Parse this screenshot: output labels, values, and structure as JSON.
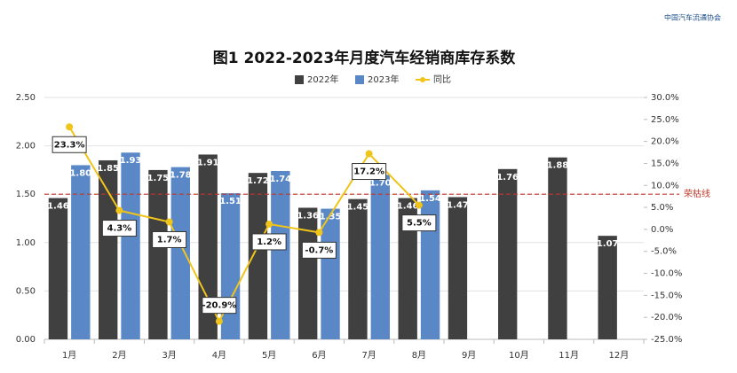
{
  "logo": "中国汽车流通协会",
  "chart_data": {
    "type": "bar_line",
    "title": "图1  2022-2023年月度汽车经销商库存系数",
    "categories": [
      "1月",
      "2月",
      "3月",
      "4月",
      "5月",
      "6月",
      "7月",
      "8月",
      "9月",
      "10月",
      "11月",
      "12月"
    ],
    "series": [
      {
        "name": "2022年",
        "color": "#404040",
        "values": [
          1.46,
          1.85,
          1.75,
          1.91,
          1.72,
          1.36,
          1.45,
          1.46,
          1.47,
          1.76,
          1.88,
          1.07
        ],
        "value_labels": [
          "1.46",
          "1.85",
          "1.75",
          "1.91",
          "1.72",
          "1.36",
          "1.45",
          "1.46",
          "1.47",
          "1.76",
          "1.88",
          "1.07"
        ]
      },
      {
        "name": "2023年",
        "color": "#5a88c6",
        "values": [
          1.8,
          1.93,
          1.78,
          1.51,
          1.74,
          1.35,
          1.7,
          1.54,
          null,
          null,
          null,
          null
        ],
        "value_labels": [
          "1.80",
          "1.93",
          "1.78",
          "1.51",
          "1.74",
          "1.35",
          "1.70",
          "1.54",
          null,
          null,
          null,
          null
        ]
      },
      {
        "name": "同比",
        "color": "#f0c419",
        "axis": "y2",
        "type": "line",
        "values": [
          23.3,
          4.3,
          1.7,
          -20.9,
          1.2,
          -0.7,
          17.2,
          5.5,
          null,
          null,
          null,
          null
        ],
        "value_labels": [
          "23.3%",
          "4.3%",
          "1.7%",
          "-20.9%",
          "1.2%",
          "-0.7%",
          "17.2%",
          "5.5%",
          null,
          null,
          null,
          null
        ]
      }
    ],
    "ylim": [
      0,
      2.5
    ],
    "yticks": [
      {
        "value": 0,
        "label": "0.00"
      },
      {
        "value": 0.5,
        "label": "0.50"
      },
      {
        "value": 1,
        "label": "1.00"
      },
      {
        "value": 1.5,
        "label": "1.50"
      },
      {
        "value": 2,
        "label": "2.00"
      },
      {
        "value": 2.5,
        "label": "2.50"
      }
    ],
    "y2lim": [
      -25,
      30
    ],
    "y2ticks": [
      {
        "value": -25,
        "label": "-25.0%"
      },
      {
        "value": -20,
        "label": "-20.0%"
      },
      {
        "value": -15,
        "label": "-15.0%"
      },
      {
        "value": -10,
        "label": "-10.0%"
      },
      {
        "value": -5,
        "label": "-5.0%"
      },
      {
        "value": 0,
        "label": "0.0%"
      },
      {
        "value": 5,
        "label": "5.0%"
      },
      {
        "value": 10,
        "label": "10.0%"
      },
      {
        "value": 15,
        "label": "15.0%"
      },
      {
        "value": 20,
        "label": "20.0%"
      },
      {
        "value": 25,
        "label": "25.0%"
      },
      {
        "value": 30,
        "label": "30.0%"
      }
    ],
    "reference_line": {
      "value": 1.5,
      "label": "荣枯线",
      "color": "#c0392b"
    },
    "legend": "top"
  }
}
